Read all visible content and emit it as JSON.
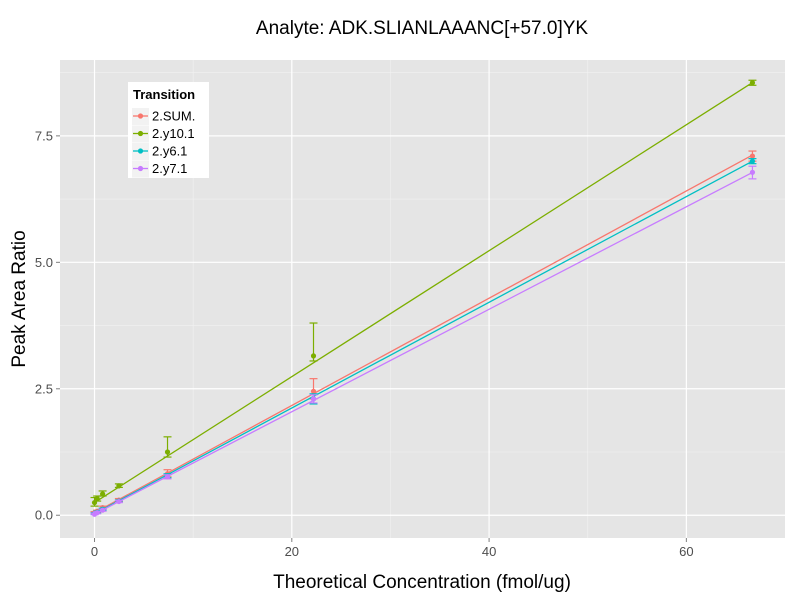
{
  "chart_data": {
    "type": "line",
    "title": "Analyte: ADK.SLIANLAAANC[+57.0]YK",
    "xlabel": "Theoretical Concentration (fmol/ug)",
    "ylabel": "Peak Area Ratio",
    "xlim": [
      -3.5,
      70
    ],
    "ylim": [
      -0.45,
      9.0
    ],
    "xticks": [
      0,
      20,
      40,
      60
    ],
    "xtick_labels": [
      "0",
      "20",
      "40",
      "60"
    ],
    "yticks": [
      0,
      2.5,
      5,
      7.5
    ],
    "ytick_labels": [
      "0.0",
      "2.5",
      "5.0",
      "7.5"
    ],
    "grid": true,
    "legend": {
      "title": "Transition",
      "placement": "top-left"
    },
    "x": [
      0,
      0.27,
      0.82,
      2.47,
      7.4,
      22.2,
      66.7
    ],
    "series": [
      {
        "name": "2.SUM.",
        "color": "#F8766D",
        "values": [
          0.05,
          0.08,
          0.15,
          0.3,
          0.82,
          2.45,
          7.1
        ],
        "err_lo": [
          0.03,
          0.06,
          0.12,
          0.27,
          0.76,
          2.3,
          7.0
        ],
        "err_hi": [
          0.07,
          0.1,
          0.18,
          0.33,
          0.9,
          2.7,
          7.2
        ],
        "fit": [
          0.05,
          0.106
        ]
      },
      {
        "name": "2.y10.1",
        "color": "#7CAE00",
        "values": [
          0.25,
          0.33,
          0.42,
          0.58,
          1.25,
          3.15,
          8.55
        ],
        "err_lo": [
          0.18,
          0.28,
          0.38,
          0.55,
          1.15,
          3.05,
          8.5
        ],
        "err_hi": [
          0.35,
          0.38,
          0.48,
          0.62,
          1.55,
          3.8,
          8.6
        ],
        "fit": [
          0.25,
          0.1245
        ]
      },
      {
        "name": "2.y6.1",
        "color": "#00BFC4",
        "values": [
          0.03,
          0.06,
          0.12,
          0.28,
          0.78,
          2.3,
          7.0
        ],
        "err_lo": [
          0.02,
          0.04,
          0.1,
          0.26,
          0.74,
          2.2,
          6.95
        ],
        "err_hi": [
          0.05,
          0.08,
          0.14,
          0.3,
          0.82,
          2.4,
          7.05
        ],
        "fit": [
          0.03,
          0.1045
        ]
      },
      {
        "name": "2.y7.1",
        "color": "#C77CFF",
        "values": [
          0.02,
          0.05,
          0.1,
          0.27,
          0.76,
          2.3,
          6.78
        ],
        "err_lo": [
          0.01,
          0.03,
          0.08,
          0.25,
          0.72,
          2.22,
          6.65
        ],
        "err_hi": [
          0.04,
          0.07,
          0.12,
          0.29,
          0.8,
          2.38,
          6.9
        ],
        "fit": [
          0.02,
          0.1013
        ]
      }
    ]
  }
}
